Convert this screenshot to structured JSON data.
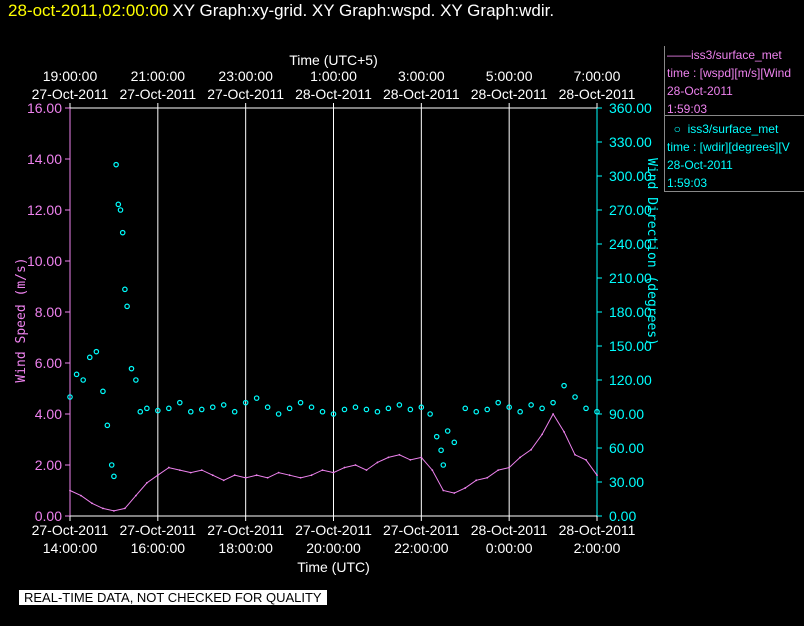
{
  "header": {
    "timestamp": "28-oct-2011,02:00:00",
    "graphs": "XY Graph:xy-grid.  XY Graph:wspd.  XY Graph:wdir."
  },
  "notice": "REAL-TIME DATA, NOT CHECKED FOR QUALITY",
  "legend": {
    "wspd": {
      "series": "iss3/surface_met",
      "line1": "time : [wspd][m/s][Wind",
      "line2": "28-Oct-2011",
      "line3": "1:59:03"
    },
    "wdir": {
      "series": "iss3/surface_met",
      "line1": "time : [wdir][degrees][V",
      "line2": "28-Oct-2011",
      "line3": "1:59:03"
    }
  },
  "colors": {
    "wspd": "#ee82ee",
    "wdir": "#00ffff",
    "grid": "#ffffff",
    "title_timestamp": "#ffff00"
  },
  "chart_data": {
    "type": "line",
    "xlabel": "Time (UTC)",
    "x2label": "Time (UTC+5)",
    "ylabel": "Wind Speed (m/s)",
    "y2label": "Wind Direction (degrees)",
    "xlim": [
      0,
      12
    ],
    "ylim": [
      0,
      16
    ],
    "y2lim": [
      0,
      360
    ],
    "grid": "vertical",
    "x_ticks": [
      {
        "x": 0,
        "date": "27-Oct-2011",
        "time": "14:00:00"
      },
      {
        "x": 2,
        "date": "27-Oct-2011",
        "time": "16:00:00"
      },
      {
        "x": 4,
        "date": "27-Oct-2011",
        "time": "18:00:00"
      },
      {
        "x": 6,
        "date": "27-Oct-2011",
        "time": "20:00:00"
      },
      {
        "x": 8,
        "date": "27-Oct-2011",
        "time": "22:00:00"
      },
      {
        "x": 10,
        "date": "28-Oct-2011",
        "time": "0:00:00"
      },
      {
        "x": 12,
        "date": "28-Oct-2011",
        "time": "2:00:00"
      }
    ],
    "x2_ticks": [
      {
        "x": 0,
        "time": "19:00:00",
        "date": "27-Oct-2011"
      },
      {
        "x": 2,
        "time": "21:00:00",
        "date": "27-Oct-2011"
      },
      {
        "x": 4,
        "time": "23:00:00",
        "date": "27-Oct-2011"
      },
      {
        "x": 6,
        "time": "1:00:00",
        "date": "28-Oct-2011"
      },
      {
        "x": 8,
        "time": "3:00:00",
        "date": "28-Oct-2011"
      },
      {
        "x": 10,
        "time": "5:00:00",
        "date": "28-Oct-2011"
      },
      {
        "x": 12,
        "time": "7:00:00",
        "date": "28-Oct-2011"
      }
    ],
    "y_ticks": [
      "0.00",
      "2.00",
      "4.00",
      "6.00",
      "8.00",
      "10.00",
      "12.00",
      "14.00",
      "16.00"
    ],
    "y2_ticks": [
      "0.00",
      "30.00",
      "60.00",
      "90.00",
      "120.00",
      "150.00",
      "180.00",
      "210.00",
      "240.00",
      "270.00",
      "300.00",
      "330.00",
      "360.00"
    ],
    "series": [
      {
        "name": "iss3/surface_met",
        "axis": "left",
        "style": "line",
        "x": [
          0,
          0.25,
          0.5,
          0.75,
          1,
          1.25,
          1.5,
          1.75,
          2,
          2.25,
          2.5,
          2.75,
          3,
          3.25,
          3.5,
          3.75,
          4,
          4.25,
          4.5,
          4.75,
          5,
          5.25,
          5.5,
          5.75,
          6,
          6.25,
          6.5,
          6.75,
          7,
          7.25,
          7.5,
          7.75,
          8,
          8.25,
          8.5,
          8.75,
          9,
          9.25,
          9.5,
          9.75,
          10,
          10.25,
          10.5,
          10.75,
          11,
          11.25,
          11.5,
          11.75,
          12
        ],
        "values": [
          1.0,
          0.8,
          0.5,
          0.3,
          0.2,
          0.3,
          0.8,
          1.3,
          1.6,
          1.9,
          1.8,
          1.7,
          1.8,
          1.6,
          1.4,
          1.6,
          1.5,
          1.6,
          1.5,
          1.7,
          1.6,
          1.5,
          1.6,
          1.8,
          1.7,
          1.9,
          2.0,
          1.8,
          2.1,
          2.3,
          2.4,
          2.2,
          2.3,
          1.8,
          1.0,
          0.9,
          1.1,
          1.4,
          1.5,
          1.8,
          1.9,
          2.3,
          2.6,
          3.2,
          4.0,
          3.3,
          2.4,
          2.2,
          1.6
        ]
      },
      {
        "name": "iss3/surface_met",
        "axis": "right",
        "style": "markers",
        "x": [
          0,
          0.15,
          0.3,
          0.45,
          0.6,
          0.75,
          0.85,
          0.95,
          1.0,
          1.05,
          1.1,
          1.15,
          1.2,
          1.25,
          1.3,
          1.4,
          1.5,
          1.6,
          1.75,
          2,
          2.25,
          2.5,
          2.75,
          3,
          3.25,
          3.5,
          3.75,
          4,
          4.25,
          4.5,
          4.75,
          5,
          5.25,
          5.5,
          5.75,
          6,
          6.25,
          6.5,
          6.75,
          7,
          7.25,
          7.5,
          7.75,
          8,
          8.2,
          8.35,
          8.45,
          8.5,
          8.6,
          8.75,
          9,
          9.25,
          9.5,
          9.75,
          10,
          10.25,
          10.5,
          10.75,
          11,
          11.25,
          11.5,
          11.75,
          12
        ],
        "values": [
          105,
          125,
          120,
          140,
          145,
          110,
          80,
          45,
          35,
          310,
          275,
          270,
          250,
          200,
          185,
          130,
          120,
          92,
          95,
          93,
          95,
          100,
          92,
          94,
          96,
          98,
          92,
          100,
          104,
          96,
          90,
          95,
          100,
          96,
          92,
          90,
          94,
          96,
          94,
          92,
          95,
          98,
          94,
          96,
          90,
          70,
          58,
          45,
          75,
          65,
          95,
          92,
          94,
          100,
          96,
          92,
          98,
          95,
          100,
          115,
          105,
          95,
          92
        ]
      }
    ]
  }
}
